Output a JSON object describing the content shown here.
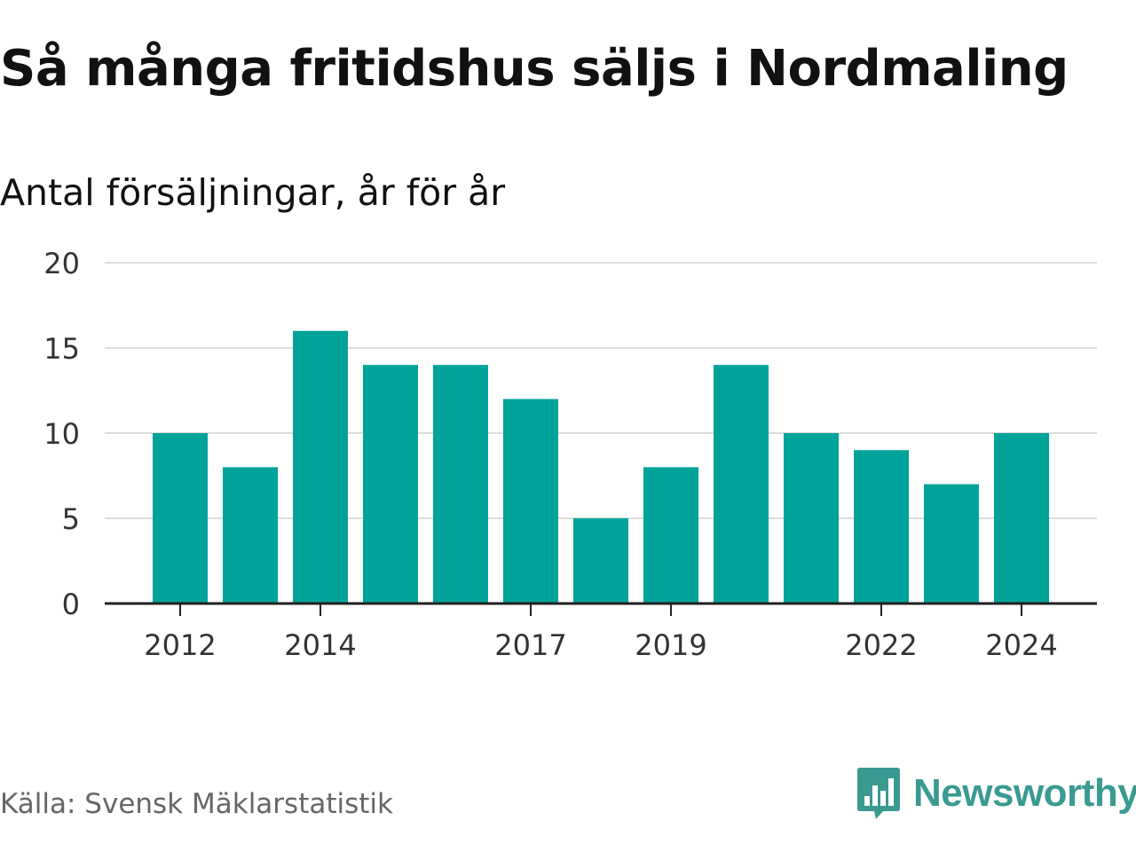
{
  "title": "Så många fritidshus säljs i Nordmaling",
  "subtitle": "Antal försäljningar, år för år",
  "source": "Källa: Svensk Mäklarstatistik",
  "brand": {
    "name": "Newsworthy",
    "icon": "newsworthy-logo-icon",
    "color": "#3a9a91"
  },
  "colors": {
    "bar": "#00a39a",
    "grid": "#dddddd",
    "axis": "#222222",
    "text": "#333333"
  },
  "chart_data": {
    "type": "bar",
    "categories": [
      "2012",
      "2013",
      "2014",
      "2015",
      "2016",
      "2017",
      "2018",
      "2019",
      "2020",
      "2021",
      "2022",
      "2023",
      "2024"
    ],
    "values": [
      10,
      8,
      16,
      14,
      14,
      12,
      5,
      8,
      14,
      10,
      9,
      7,
      10
    ],
    "x_tick_labels": [
      "2012",
      "2014",
      "2017",
      "2019",
      "2022",
      "2024"
    ],
    "y_ticks": [
      0,
      5,
      10,
      15,
      20
    ],
    "ylim": [
      0,
      20
    ],
    "grid": true,
    "title": "Så många fritidshus säljs i Nordmaling",
    "subtitle": "Antal försäljningar, år för år"
  }
}
